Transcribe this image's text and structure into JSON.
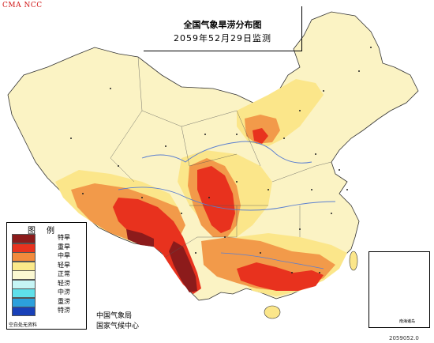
{
  "header": {
    "source_tag": "CMA  NCC",
    "title_line1": "全国气象旱涝分布图",
    "title_line2": "2059年52月29日监测"
  },
  "legend": {
    "title": "图例",
    "items": [
      {
        "label": "特旱",
        "color": "#8c1b1b"
      },
      {
        "label": "重旱",
        "color": "#e8321e"
      },
      {
        "label": "中旱",
        "color": "#f28a3c"
      },
      {
        "label": "轻旱",
        "color": "#fbe98a"
      },
      {
        "label": "正常",
        "color": "#fbf8d2"
      },
      {
        "label": "轻涝",
        "color": "#c6f5f5"
      },
      {
        "label": "中涝",
        "color": "#5fe0ea"
      },
      {
        "label": "重涝",
        "color": "#2ca0dc"
      },
      {
        "label": "特涝",
        "color": "#1840b8"
      }
    ],
    "no_data_label": "空白处无资料"
  },
  "footer": {
    "org_line1": "中国气象局",
    "org_line2": "国家气候中心",
    "inset_label": "南海诸岛",
    "code": "2059052.0"
  },
  "colors": {
    "base_land": "#fbf3c4",
    "light_yellow": "#fbe68a",
    "orange": "#f29a4a",
    "red": "#e8321e",
    "dark_red": "#8c1b1b",
    "river": "#5b7fd0",
    "border": "#333333"
  }
}
